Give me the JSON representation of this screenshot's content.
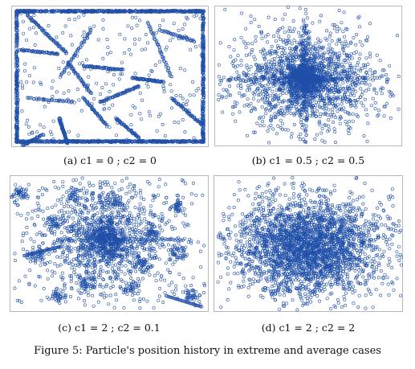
{
  "figure": {
    "caption": "Figure 5: Particle's position history in extreme and average cases"
  },
  "colors": {
    "marker": "#1f4fa8",
    "marker_dense": "#173c8f",
    "frame": "#b9b9b9"
  },
  "chart_data": [
    {
      "type": "scatter",
      "caption": "(a) c1 = 0 ; c2 = 0",
      "marker": "hollow-circle",
      "description_of_pattern": "many particles pinned to the search-space boundary plus straight drifting trails",
      "boundary_concentration": "very high"
    },
    {
      "type": "scatter",
      "caption": "(b) c1 = 0.5 ; c2 = 0.5",
      "marker": "hollow-circle",
      "distribution": "single dense cloud with a cross-shaped core near the center"
    },
    {
      "type": "scatter",
      "caption": "(c) c1 = 2 ; c2 = 0.1",
      "marker": "hollow-circle",
      "distribution": "central cloud plus many scattered local clusters and streaks"
    },
    {
      "type": "scatter",
      "caption": "(d) c1 = 2 ; c2 = 2",
      "marker": "hollow-circle",
      "distribution": "large dense elliptical cloud centered in the plot"
    }
  ]
}
